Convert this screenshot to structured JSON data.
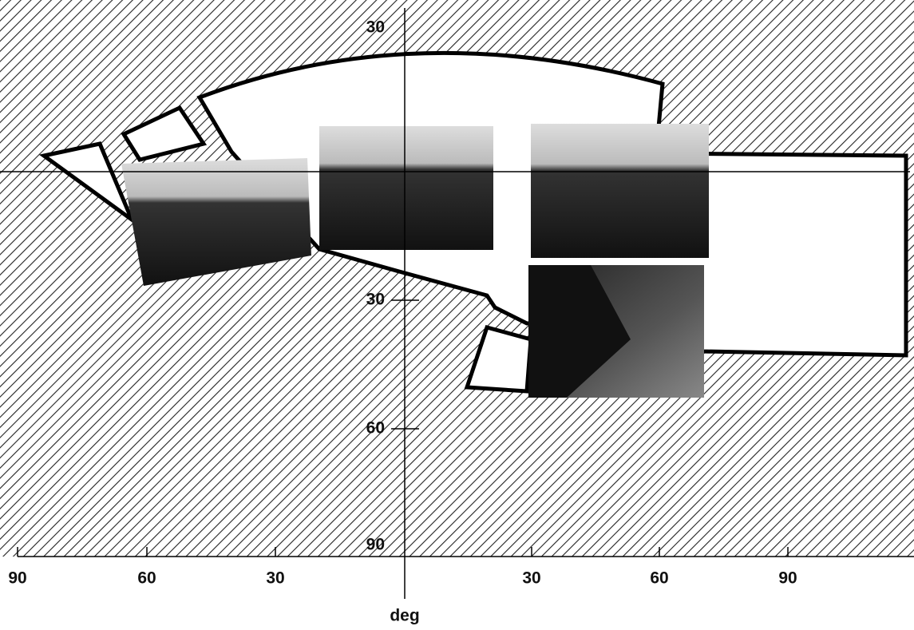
{
  "x_axis": {
    "labels": [
      "90",
      "60",
      "30",
      "30",
      "60",
      "90"
    ],
    "title": "deg"
  },
  "y_axis": {
    "labels": [
      "30",
      "30",
      "60",
      "90"
    ]
  }
}
